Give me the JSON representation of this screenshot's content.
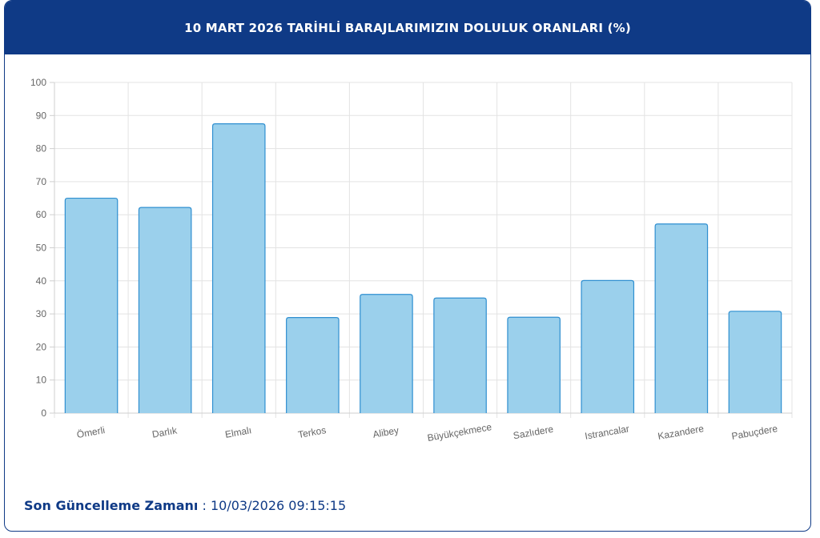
{
  "header": {
    "title": "10 MART 2026 TARİHLİ BARAJLARIMIZIN DOLULUK ORANLARI (%)"
  },
  "footer": {
    "label": "Son Güncelleme Zamanı",
    "separator": " : ",
    "value": "10/03/2026 09:15:15"
  },
  "colors": {
    "header_bg": "#0f3a86",
    "bar_fill": "#9bd0ec",
    "bar_stroke": "#2f8fd0",
    "grid": "#e3e3e3"
  },
  "chart_data": {
    "type": "bar",
    "title": "",
    "xlabel": "",
    "ylabel": "",
    "ylim": [
      0,
      100
    ],
    "yticks": [
      0,
      10,
      20,
      30,
      40,
      50,
      60,
      70,
      80,
      90,
      100
    ],
    "grid": true,
    "categories": [
      "Ömerli",
      "Darlık",
      "Elmalı",
      "Terkos",
      "Alibey",
      "Büyükçekmece",
      "Sazlıdere",
      "Istrancalar",
      "Kazandere",
      "Pabuçdere"
    ],
    "values": [
      65,
      62.2,
      87.5,
      28.9,
      35.9,
      34.8,
      29,
      40.1,
      57.2,
      30.8
    ]
  }
}
